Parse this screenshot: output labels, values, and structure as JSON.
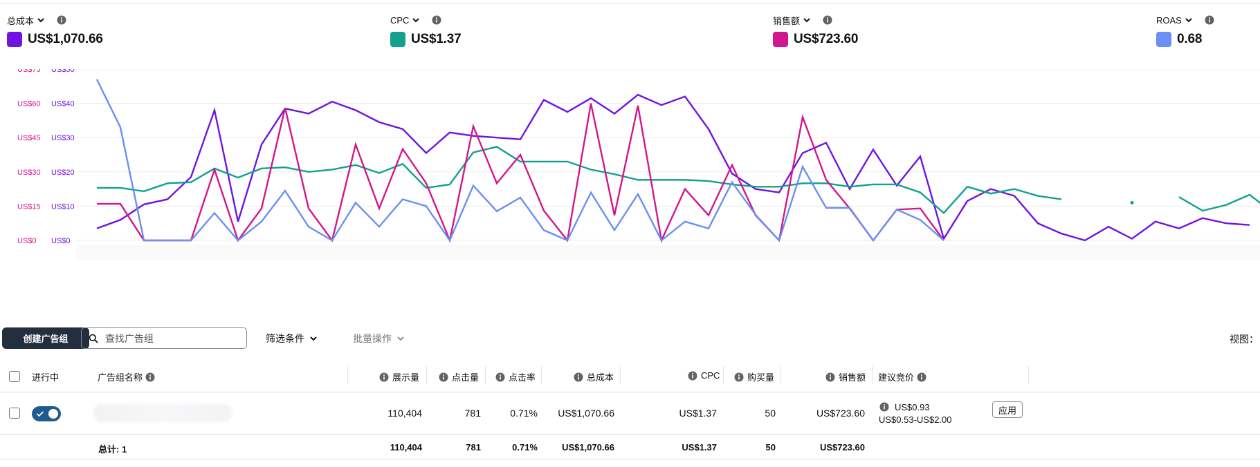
{
  "metrics": [
    {
      "label": "总成本",
      "value": "US$1,070.66",
      "color": "#6f14e0"
    },
    {
      "label": "CPC",
      "value": "US$1.37",
      "color": "#12a08f"
    },
    {
      "label": "销售额",
      "value": "US$723.60",
      "color": "#d2168c"
    },
    {
      "label": "ROAS",
      "value": "0.68",
      "color": "#6a8ff5"
    }
  ],
  "chart_data": {
    "type": "line",
    "left_axis_ticks": [
      "US$75",
      "US$60",
      "US$45",
      "US$30",
      "US$15",
      "US$0"
    ],
    "right_axis_ticks": [
      "US$50",
      "US$40",
      "US$30",
      "US$20",
      "US$10",
      "US$0"
    ],
    "left_axis_color": "#d2168c",
    "right_axis_color": "#6f14e0",
    "left_range": [
      0,
      75
    ],
    "right_range": [
      0,
      50
    ],
    "grid": true,
    "series": [
      {
        "metric": "cost",
        "color": "#6f14e0",
        "axis": "right",
        "values": [
          3.5,
          6,
          10.5,
          12,
          18.5,
          38,
          5.5,
          28,
          38.5,
          37,
          40.5,
          38,
          34.5,
          32.5,
          25.5,
          31.5,
          30.5,
          30,
          29.5,
          41,
          37.5,
          41.5,
          37,
          42.5,
          39.5,
          42,
          32.5,
          19.5,
          15,
          14,
          25.5,
          28.5,
          15,
          26.5,
          16,
          24.5,
          0.5,
          11.5,
          15,
          13,
          5,
          2,
          0,
          4,
          0.5,
          5.5,
          3.5,
          6.5,
          5,
          4.5
        ]
      },
      {
        "metric": "cpc",
        "color": "#12a08f",
        "axis": "left",
        "values": [
          23,
          23,
          21.5,
          25,
          25.5,
          31.5,
          27.5,
          31.5,
          32,
          30,
          31,
          33,
          29.5,
          33.5,
          23,
          24.5,
          38.5,
          41,
          34.5,
          34.5,
          34.5,
          31,
          29,
          26.5,
          26.5,
          26.5,
          26,
          24.5,
          23.5,
          23.5,
          25,
          25,
          23.5,
          24.5,
          24.5,
          21,
          12,
          23.5,
          20.5,
          22.5,
          19.5,
          18,
          null,
          null,
          16.5,
          null,
          19,
          13,
          15.5,
          20,
          12
        ]
      },
      {
        "metric": "sales",
        "color": "#d2168c",
        "axis": "left",
        "values": [
          16,
          16,
          0,
          0,
          0,
          31,
          0,
          14,
          58,
          14,
          0,
          42,
          14,
          40,
          25,
          0,
          50,
          25,
          37.5,
          13,
          0,
          60,
          11,
          59,
          0,
          22.5,
          11,
          33,
          11,
          0,
          54,
          26.5,
          14,
          0,
          13.5,
          14,
          0
        ]
      },
      {
        "metric": "roas",
        "color": "#6a8ff5",
        "axis": "right",
        "values": [
          47,
          33,
          0,
          0,
          0,
          8,
          0,
          5.5,
          14.5,
          4,
          0,
          11,
          4,
          12,
          10,
          0,
          16,
          8.5,
          12.5,
          3,
          0,
          14,
          3,
          13.5,
          0,
          5.5,
          3.5,
          17,
          7.5,
          0,
          21.5,
          9.5,
          9.5,
          0,
          9,
          6,
          0
        ]
      }
    ]
  },
  "toolbar": {
    "create_label": "创建广告组",
    "search_placeholder": "查找广告组",
    "filter_label": "筛选条件",
    "bulk_label": "批量操作",
    "view_label": "视图："
  },
  "table": {
    "headers": {
      "active": "进行中",
      "name": "广告组名称",
      "impressions": "展示量",
      "clicks": "点击量",
      "ctr": "点击率",
      "cost": "总成本",
      "cpc": "CPC",
      "purchases": "购买量",
      "sales": "销售额",
      "bid": "建议竞价"
    },
    "row": {
      "impressions": "110,404",
      "clicks": "781",
      "ctr": "0.71%",
      "cost": "US$1,070.66",
      "cpc": "US$1.37",
      "purchases": "50",
      "sales": "US$723.60",
      "bid": "US$0.93",
      "bid_range": "US$0.53-US$2.00",
      "apply_label": "应用"
    },
    "total": {
      "label": "总计: 1",
      "impressions": "110,404",
      "clicks": "781",
      "ctr": "0.71%",
      "cost": "US$1,070.66",
      "cpc": "US$1.37",
      "purchases": "50",
      "sales": "US$723.60"
    }
  }
}
